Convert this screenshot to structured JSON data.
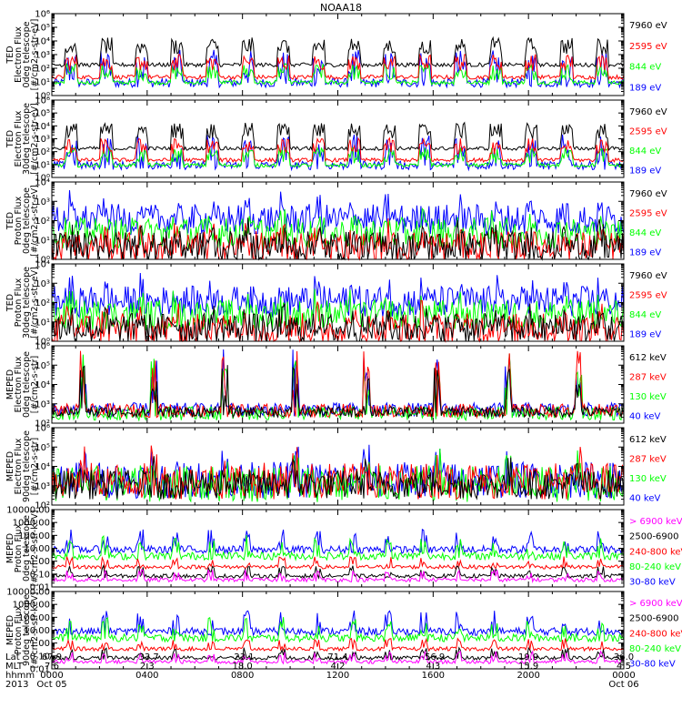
{
  "title": "NOAA18",
  "colors": {
    "black": "#000000",
    "red": "#ff0000",
    "green": "#00ff00",
    "blue": "#0000ff",
    "magenta": "#ff00ff"
  },
  "chart_data": [
    {
      "type": "line",
      "scale": "log",
      "ylim": [
        1,
        1000000
      ],
      "ylabel": [
        "TED",
        "Electron Flux",
        "0deg telescope",
        "[#/cm2-s-str-eV]"
      ],
      "series": [
        {
          "name": "7960 eV",
          "color": "#000000"
        },
        {
          "name": "2595 eV",
          "color": "#ff0000"
        },
        {
          "name": "844 eV",
          "color": "#00ff00"
        },
        {
          "name": "189 eV",
          "color": "#0000ff"
        }
      ]
    },
    {
      "type": "line",
      "scale": "log",
      "ylim": [
        1,
        1000000
      ],
      "ylabel": [
        "TED",
        "Electron Flux",
        "30deg telescope",
        "[#/cm2-s-str-eV]"
      ],
      "series": [
        {
          "name": "7960 eV",
          "color": "#000000"
        },
        {
          "name": "2595 eV",
          "color": "#ff0000"
        },
        {
          "name": "844 eV",
          "color": "#00ff00"
        },
        {
          "name": "189 eV",
          "color": "#0000ff"
        }
      ]
    },
    {
      "type": "line",
      "scale": "log",
      "ylim": [
        1,
        10000
      ],
      "ylabel": [
        "TED",
        "Proton Flux",
        "0deg telescope",
        "[#/cm2-s-str-eV]"
      ],
      "series": [
        {
          "name": "7960 eV",
          "color": "#000000"
        },
        {
          "name": "2595 eV",
          "color": "#ff0000"
        },
        {
          "name": "844 eV",
          "color": "#00ff00"
        },
        {
          "name": "189 eV",
          "color": "#0000ff"
        }
      ]
    },
    {
      "type": "line",
      "scale": "log",
      "ylim": [
        1,
        10000
      ],
      "ylabel": [
        "TED",
        "Proton Flux",
        "30deg telescope",
        "[#/cm2-s-str-eV]"
      ],
      "series": [
        {
          "name": "7960 eV",
          "color": "#000000"
        },
        {
          "name": "2595 eV",
          "color": "#ff0000"
        },
        {
          "name": "844 eV",
          "color": "#00ff00"
        },
        {
          "name": "189 eV",
          "color": "#0000ff"
        }
      ]
    },
    {
      "type": "line",
      "scale": "log",
      "ylim": [
        100,
        1000000
      ],
      "ylabel": [
        "MEPED",
        "Electron Flux",
        "0deg telescope",
        "[#/cm2-s-str]"
      ],
      "series": [
        {
          "name": "612 keV",
          "color": "#000000"
        },
        {
          "name": "287 keV",
          "color": "#ff0000"
        },
        {
          "name": "130 keV",
          "color": "#00ff00"
        },
        {
          "name": "40 keV",
          "color": "#0000ff"
        }
      ]
    },
    {
      "type": "line",
      "scale": "log",
      "ylim": [
        100,
        1000000
      ],
      "ylabel": [
        "MEPED",
        "Electron Flux",
        "90deg telescope",
        "[#/cm2-s-str]"
      ],
      "series": [
        {
          "name": "612 keV",
          "color": "#000000"
        },
        {
          "name": "287 keV",
          "color": "#ff0000"
        },
        {
          "name": "130 keV",
          "color": "#00ff00"
        },
        {
          "name": "40 keV",
          "color": "#0000ff"
        }
      ]
    },
    {
      "type": "line",
      "scale": "log",
      "ylim": [
        0.01,
        10000
      ],
      "ylabel": [
        "MEPED",
        "Proton Flux",
        "0deg telescope",
        "[#/cm2-s-str-keV]"
      ],
      "ytick_labels": [
        "10000.00",
        "1000.00",
        "100.00",
        "10.00",
        "1.00",
        "0.10",
        "0.01"
      ],
      "series": [
        {
          "name": "> 6900 keV",
          "color": "#ff00ff"
        },
        {
          "name": "2500-6900",
          "color": "#000000"
        },
        {
          "name": "240-800 keV",
          "color": "#ff0000"
        },
        {
          "name": "80-240 keV",
          "color": "#00ff00"
        },
        {
          "name": "30-80 keV",
          "color": "#0000ff"
        }
      ]
    },
    {
      "type": "line",
      "scale": "log",
      "ylim": [
        0.01,
        10000
      ],
      "ylabel": [
        "MEPED",
        "Proton Flux",
        "90deg telescope",
        "[#/cm2-s-str-keV]"
      ],
      "ytick_labels": [
        "10000.00",
        "1000.00",
        "100.00",
        "10.00",
        "1.00",
        "0.10",
        "0.01"
      ],
      "series": [
        {
          "name": "> 6900 keV",
          "color": "#ff00ff"
        },
        {
          "name": "2500-6900",
          "color": "#000000"
        },
        {
          "name": "240-800 keV",
          "color": "#ff0000"
        },
        {
          "name": "80-240 keV",
          "color": "#00ff00"
        },
        {
          "name": "30-80 keV",
          "color": "#0000ff"
        }
      ]
    }
  ],
  "xaxis": {
    "row_labels": [
      "Lat",
      "MLT",
      "hhmm",
      "2013"
    ],
    "ticks": [
      {
        "lat": "67.9",
        "mlt": "7.6",
        "hhmm": "0000",
        "date": "Oct 05"
      },
      {
        "lat": "-33.7",
        "mlt": "2.3",
        "hhmm": "0400",
        "date": ""
      },
      {
        "lat": "-23.1",
        "mlt": "18.0",
        "hhmm": "0800",
        "date": ""
      },
      {
        "lat": "71.4",
        "mlt": "4.2",
        "hhmm": "1200",
        "date": ""
      },
      {
        "lat": "-56.9",
        "mlt": "4.3",
        "hhmm": "1600",
        "date": ""
      },
      {
        "lat": "19.9",
        "mlt": "15.9",
        "hhmm": "2000",
        "date": ""
      },
      {
        "lat": "36.0",
        "mlt": "4.5",
        "hhmm": "0000",
        "date": "Oct 06"
      }
    ]
  }
}
